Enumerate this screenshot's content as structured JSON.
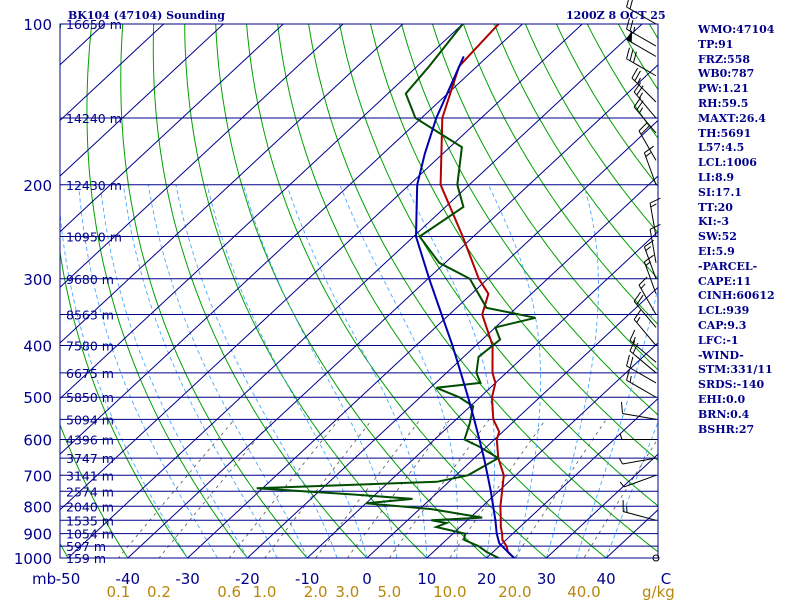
{
  "header": {
    "title": "BK104 (47104) Sounding",
    "datetime": "1200Z  8 OCT 25"
  },
  "indices": [
    "WMO:47104",
    "TP:91",
    "FRZ:558",
    "WB0:787",
    "PW:1.21",
    "RH:59.5",
    "MAXT:26.4",
    "TH:5691",
    "L57:4.5",
    "LCL:1006",
    "LI:8.9",
    "SI:17.1",
    "TT:20",
    "KI:-3",
    "SW:52",
    "EI:5.9",
    "-PARCEL-",
    "CAPE:11",
    "CINH:60612",
    "LCL:939",
    "CAP:9.3",
    "LFC:-1",
    "-WIND-",
    "STM:331/11",
    "SRDS:-140",
    "EHI:0.0",
    "BRN:0.4",
    "BSHR:27"
  ],
  "colors": {
    "text": "#00008b",
    "isobar": "#00008b",
    "isotherm": "#00008b",
    "dry_adiabat": "#00a000",
    "moist_adiabat": "#4aa8ff",
    "mixing_ratio": "#555555",
    "temperature": "#b00000",
    "dewpoint": "#004d00",
    "parcel": "#0000b0",
    "lower_axis": "#b8860b",
    "background": "#ffffff"
  },
  "chart_data": {
    "type": "line",
    "title": "BK104 (47104) Sounding",
    "xlabel": "C",
    "ylabel": "mb",
    "xlim": [
      -50,
      50
    ],
    "ylim": [
      1000,
      100
    ],
    "y_scale": "log",
    "skewed": true,
    "grid": true,
    "isobar_labels": [
      "100",
      "200",
      "300",
      "400",
      "500",
      "600",
      "700",
      "800",
      "900",
      "1000"
    ],
    "pressure_ticks": [
      100,
      200,
      300,
      400,
      500,
      600,
      700,
      800,
      900,
      1000
    ],
    "temperature_labels": [
      "-50",
      "-40",
      "-30",
      "-20",
      "-10",
      "0",
      "10",
      "20",
      "30",
      "40",
      "C"
    ],
    "temperature_ticks": [
      -50,
      -40,
      -30,
      -20,
      -10,
      0,
      10,
      20,
      30,
      40
    ],
    "mixing_ratio_label": "g/kg",
    "mixing_ratio_labels": [
      "0.1",
      "0.2",
      "0.6",
      "1.0",
      "2.0",
      "3.0",
      "5.0",
      "10.0",
      "20.0",
      "40.0"
    ],
    "mixing_ratio_values": [
      0.1,
      0.2,
      0.6,
      1.0,
      2.0,
      3.0,
      5.0,
      10.0,
      20.0,
      40.0
    ],
    "height_labels": [
      {
        "p": 100,
        "label": "16650 m"
      },
      {
        "p": 150,
        "label": "14240 m"
      },
      {
        "p": 200,
        "label": "12430 m"
      },
      {
        "p": 250,
        "label": "10950 m"
      },
      {
        "p": 300,
        "label": "9680 m"
      },
      {
        "p": 350,
        "label": "8563 m"
      },
      {
        "p": 400,
        "label": "7580 m"
      },
      {
        "p": 450,
        "label": "6675 m"
      },
      {
        "p": 500,
        "label": "5850 m"
      },
      {
        "p": 550,
        "label": "5094 m"
      },
      {
        "p": 600,
        "label": "4396 m"
      },
      {
        "p": 650,
        "label": "3747 m"
      },
      {
        "p": 700,
        "label": "3141 m"
      },
      {
        "p": 750,
        "label": "2574 m"
      },
      {
        "p": 800,
        "label": "2040 m"
      },
      {
        "p": 850,
        "label": "1535 m"
      },
      {
        "p": 900,
        "label": "1054 m"
      },
      {
        "p": 950,
        "label": "597 m"
      },
      {
        "p": 1000,
        "label": "159 m"
      }
    ],
    "series": [
      {
        "name": "Temperature",
        "points": [
          [
            1010,
            26.4
          ],
          [
            1000,
            24.6
          ],
          [
            975,
            22.5
          ],
          [
            950,
            21.2
          ],
          [
            925,
            19.4
          ],
          [
            900,
            18.2
          ],
          [
            875,
            16.8
          ],
          [
            850,
            15.6
          ],
          [
            800,
            13.0
          ],
          [
            750,
            10.6
          ],
          [
            700,
            8.0
          ],
          [
            650,
            4.0
          ],
          [
            600,
            0.4
          ],
          [
            580,
            -0.6
          ],
          [
            550,
            -3.8
          ],
          [
            500,
            -8.0
          ],
          [
            470,
            -10.0
          ],
          [
            450,
            -12.3
          ],
          [
            400,
            -17.2
          ],
          [
            350,
            -24.5
          ],
          [
            320,
            -27.2
          ],
          [
            300,
            -31.5
          ],
          [
            250,
            -41.8
          ],
          [
            200,
            -54.8
          ],
          [
            150,
            -66.5
          ],
          [
            120,
            -73.0
          ],
          [
            100,
            -74.0
          ]
        ]
      },
      {
        "name": "Dewpoint",
        "points": [
          [
            1010,
            23.0
          ],
          [
            1000,
            22.0
          ],
          [
            975,
            19.0
          ],
          [
            950,
            16.5
          ],
          [
            925,
            13.0
          ],
          [
            900,
            12.0
          ],
          [
            875,
            6.0
          ],
          [
            860,
            7.0
          ],
          [
            850,
            4.0
          ],
          [
            840,
            12.0
          ],
          [
            810,
            2.0
          ],
          [
            790,
            -10.0
          ],
          [
            775,
            -3.0
          ],
          [
            760,
            -14.0
          ],
          [
            740,
            -31.0
          ],
          [
            720,
            -2.0
          ],
          [
            700,
            2.0
          ],
          [
            650,
            4.0
          ],
          [
            620,
            -1.0
          ],
          [
            600,
            -5.0
          ],
          [
            560,
            -7.0
          ],
          [
            520,
            -9.5
          ],
          [
            500,
            -13.5
          ],
          [
            480,
            -19.0
          ],
          [
            470,
            -12.5
          ],
          [
            450,
            -15.0
          ],
          [
            420,
            -17.5
          ],
          [
            390,
            -17.0
          ],
          [
            370,
            -20.0
          ],
          [
            355,
            -15.0
          ],
          [
            340,
            -25.0
          ],
          [
            300,
            -33.0
          ],
          [
            280,
            -41.0
          ],
          [
            250,
            -49.0
          ],
          [
            220,
            -47.0
          ],
          [
            200,
            -52.0
          ],
          [
            170,
            -58.0
          ],
          [
            150,
            -71.0
          ],
          [
            135,
            -77.0
          ],
          [
            120,
            -78.0
          ],
          [
            100,
            -80.0
          ]
        ]
      },
      {
        "name": "Parcel",
        "points": [
          [
            1000,
            24.6
          ],
          [
            939,
            19.5
          ],
          [
            900,
            17.3
          ],
          [
            850,
            14.7
          ],
          [
            800,
            11.8
          ],
          [
            750,
            8.7
          ],
          [
            700,
            5.3
          ],
          [
            650,
            1.6
          ],
          [
            600,
            -2.5
          ],
          [
            550,
            -7.0
          ],
          [
            500,
            -12.0
          ],
          [
            450,
            -17.6
          ],
          [
            400,
            -23.9
          ],
          [
            350,
            -31.3
          ],
          [
            300,
            -39.8
          ],
          [
            250,
            -49.6
          ],
          [
            200,
            -58.7
          ],
          [
            175,
            -63.0
          ],
          [
            150,
            -67.5
          ],
          [
            130,
            -71.0
          ],
          [
            115,
            -74.0
          ]
        ]
      }
    ],
    "wind_barbs": [
      {
        "p": 1000,
        "dir": 0,
        "spd": 0
      },
      {
        "p": 850,
        "dir": 285,
        "spd": 15
      },
      {
        "p": 700,
        "dir": 250,
        "spd": 5
      },
      {
        "p": 650,
        "dir": 260,
        "spd": 5
      },
      {
        "p": 600,
        "dir": 270,
        "spd": 5
      },
      {
        "p": 550,
        "dir": 280,
        "spd": 10
      },
      {
        "p": 500,
        "dir": 300,
        "spd": 15
      },
      {
        "p": 470,
        "dir": 300,
        "spd": 20
      },
      {
        "p": 450,
        "dir": 310,
        "spd": 20
      },
      {
        "p": 430,
        "dir": 310,
        "spd": 15
      },
      {
        "p": 400,
        "dir": 320,
        "spd": 15
      },
      {
        "p": 370,
        "dir": 320,
        "spd": 20
      },
      {
        "p": 350,
        "dir": 330,
        "spd": 15
      },
      {
        "p": 320,
        "dir": 340,
        "spd": 15
      },
      {
        "p": 300,
        "dir": 340,
        "spd": 15
      },
      {
        "p": 280,
        "dir": 350,
        "spd": 10
      },
      {
        "p": 250,
        "dir": 350,
        "spd": 15
      },
      {
        "p": 200,
        "dir": 340,
        "spd": 15
      },
      {
        "p": 180,
        "dir": 330,
        "spd": 20
      },
      {
        "p": 160,
        "dir": 320,
        "spd": 25
      },
      {
        "p": 150,
        "dir": 320,
        "spd": 25
      },
      {
        "p": 140,
        "dir": 315,
        "spd": 25
      },
      {
        "p": 125,
        "dir": 300,
        "spd": 30
      },
      {
        "p": 115,
        "dir": 300,
        "spd": 50
      },
      {
        "p": 110,
        "dir": 300,
        "spd": 25
      },
      {
        "p": 100,
        "dir": 300,
        "spd": 20
      },
      {
        "p": 90,
        "dir": 300,
        "spd": 20
      }
    ]
  }
}
